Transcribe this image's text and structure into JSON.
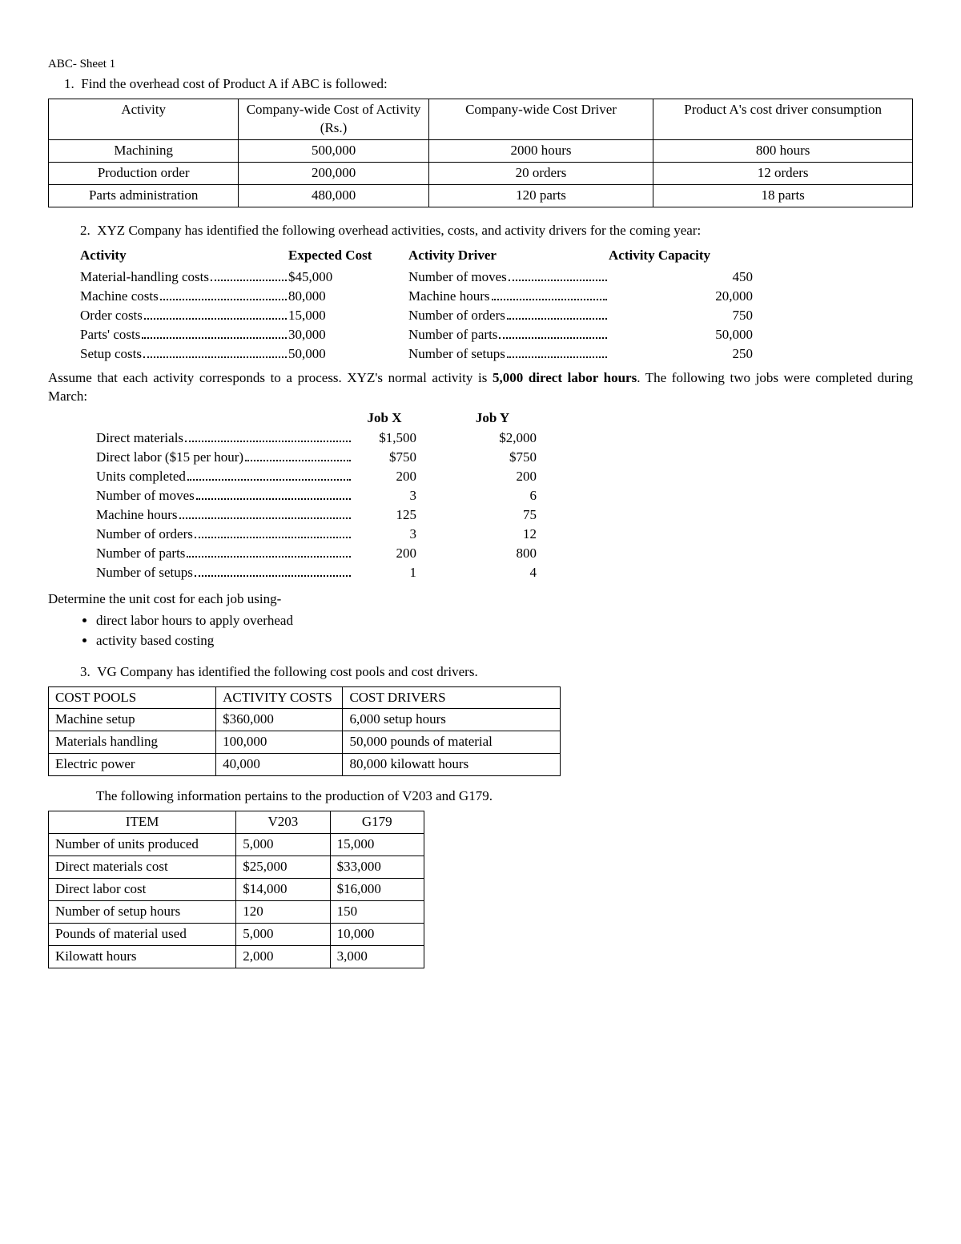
{
  "header": "ABC- Sheet 1",
  "q1": {
    "number": "1.",
    "prompt": "Find the overhead cost of Product A if ABC is followed:",
    "columns": [
      "Activity",
      "Company-wide Cost of Activity (Rs.)",
      "Company-wide Cost Driver",
      "Product A's cost driver consumption"
    ],
    "rows": [
      [
        "Machining",
        "500,000",
        "2000 hours",
        "800 hours"
      ],
      [
        "Production order",
        "200,000",
        "20 orders",
        "12 orders"
      ],
      [
        "Parts administration",
        "480,000",
        "120 parts",
        "18 parts"
      ]
    ]
  },
  "q2": {
    "number": "2.",
    "prompt": "XYZ Company has identified the following overhead activities, costs, and activity drivers for the coming year:",
    "activity_headers": [
      "Activity",
      "Expected Cost",
      "Activity Driver",
      "Activity Capacity"
    ],
    "activities": [
      {
        "name": "Material-handling costs",
        "cost": "$45,000",
        "driver": "Number of moves",
        "capacity": "450"
      },
      {
        "name": "Machine costs",
        "cost": "80,000",
        "driver": "Machine hours",
        "capacity": "20,000"
      },
      {
        "name": "Order costs",
        "cost": "15,000",
        "driver": "Number of orders",
        "capacity": "750"
      },
      {
        "name": "Parts' costs",
        "cost": "30,000",
        "driver": "Number of parts",
        "capacity": "50,000"
      },
      {
        "name": "Setup costs",
        "cost": "50,000",
        "driver": "Number of setups",
        "capacity": "250"
      }
    ],
    "mid_text_1": "Assume that each activity corresponds to a process. XYZ's normal activity is ",
    "mid_bold": "5,000 direct labor hours",
    "mid_text_2": ". The following two jobs were completed during March:",
    "job_headers": [
      "",
      "Job X",
      "Job Y"
    ],
    "jobs": [
      {
        "label": "Direct materials",
        "x": "$1,500",
        "y": "$2,000"
      },
      {
        "label": "Direct labor ($15 per hour)",
        "x": "$750",
        "y": "$750"
      },
      {
        "label": "Units completed",
        "x": "200",
        "y": "200"
      },
      {
        "label": "Number of moves",
        "x": "3",
        "y": "6"
      },
      {
        "label": "Machine hours",
        "x": "125",
        "y": "75"
      },
      {
        "label": "Number of orders",
        "x": "3",
        "y": "12"
      },
      {
        "label": "Number of parts",
        "x": "200",
        "y": "800"
      },
      {
        "label": "Number of setups",
        "x": "1",
        "y": "4"
      }
    ],
    "determine": "Determine the unit cost for each job using-",
    "bullets": [
      "direct labor hours to apply overhead",
      "activity based costing"
    ]
  },
  "q3": {
    "number": "3.",
    "prompt": "VG Company has identified the following cost pools and cost drivers.",
    "table_a": {
      "headers": [
        "COST POOLS",
        "ACTIVITY COSTS",
        "COST DRIVERS"
      ],
      "rows": [
        [
          "Machine setup",
          "$360,000",
          "6,000 setup hours"
        ],
        [
          "Materials handling",
          "100,000",
          "50,000 pounds of material"
        ],
        [
          "Electric power",
          "40,000",
          "80,000 kilowatt hours"
        ]
      ]
    },
    "mid": "The following information pertains to the production of V203 and G179.",
    "table_b": {
      "headers": [
        "ITEM",
        "V203",
        "G179"
      ],
      "rows": [
        [
          "Number of units produced",
          "5,000",
          "15,000"
        ],
        [
          "Direct materials cost",
          "$25,000",
          "$33,000"
        ],
        [
          "Direct labor cost",
          "$14,000",
          "$16,000"
        ],
        [
          "Number of setup hours",
          "120",
          "150"
        ],
        [
          "Pounds of material used",
          "5,000",
          "10,000"
        ],
        [
          "Kilowatt hours",
          "2,000",
          "3,000"
        ]
      ]
    }
  }
}
